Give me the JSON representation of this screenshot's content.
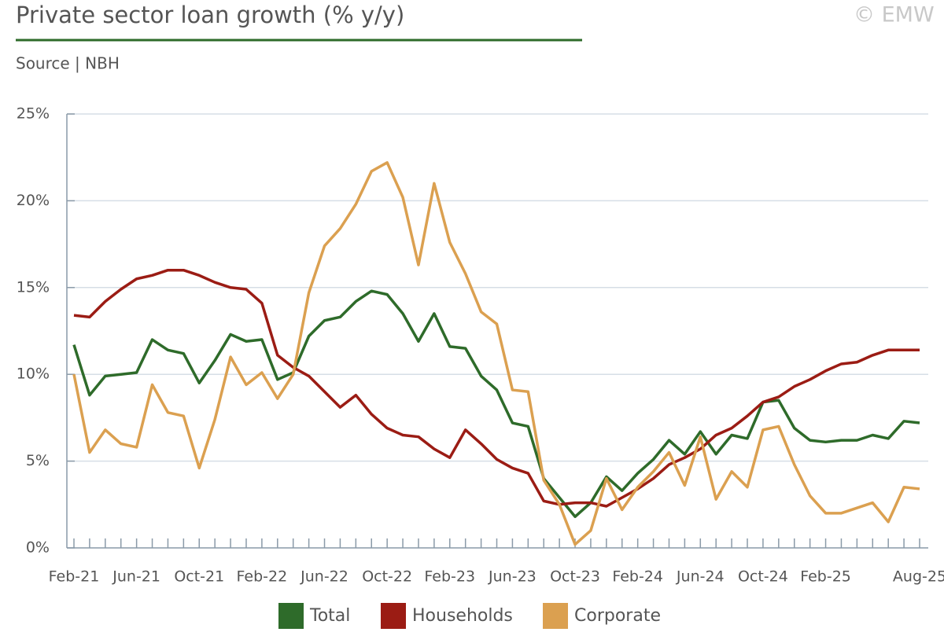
{
  "chart_data": {
    "type": "line",
    "title": "Private sector loan growth (% y/y)",
    "subtitle": "Source | NBH",
    "watermark": "© EMW",
    "categories": [
      "Feb-21",
      null,
      null,
      null,
      "Jun-21",
      null,
      null,
      null,
      "Oct-21",
      null,
      null,
      null,
      "Feb-22",
      null,
      null,
      null,
      "Jun-22",
      null,
      null,
      null,
      "Oct-22",
      null,
      null,
      null,
      "Feb-23",
      null,
      null,
      null,
      "Jun-23",
      null,
      null,
      null,
      "Oct-23",
      null,
      null,
      null,
      "Feb-24",
      null,
      null,
      null,
      "Jun-24",
      null,
      null,
      null,
      "Oct-24",
      null,
      null,
      null,
      "Feb-25",
      null,
      null,
      null,
      null,
      null,
      "Aug-25"
    ],
    "series": [
      {
        "name": "Total",
        "color": "#2e6b2a",
        "values": [
          11.7,
          8.8,
          9.9,
          10.0,
          10.1,
          12.0,
          11.4,
          11.2,
          9.5,
          10.8,
          12.3,
          11.9,
          12.0,
          9.7,
          10.1,
          12.2,
          13.1,
          13.3,
          14.2,
          14.8,
          14.6,
          13.5,
          11.9,
          13.5,
          11.6,
          11.5,
          9.9,
          9.1,
          7.2,
          7.0,
          4.0,
          2.9,
          1.8,
          2.6,
          4.1,
          3.3,
          4.3,
          5.1,
          6.2,
          5.4,
          6.7,
          5.4,
          6.5,
          6.3,
          8.4,
          8.5,
          6.9,
          6.2,
          6.1,
          6.2,
          6.2,
          6.5,
          6.3,
          7.3,
          7.2
        ]
      },
      {
        "name": "Households",
        "color": "#9b1c14",
        "values": [
          13.4,
          13.3,
          14.2,
          14.9,
          15.5,
          15.7,
          16.0,
          16.0,
          15.7,
          15.3,
          15.0,
          14.9,
          14.1,
          11.1,
          10.4,
          9.9,
          9.0,
          8.1,
          8.8,
          7.7,
          6.9,
          6.5,
          6.4,
          5.7,
          5.2,
          6.8,
          6.0,
          5.1,
          4.6,
          4.3,
          2.7,
          2.5,
          2.6,
          2.6,
          2.4,
          2.9,
          3.4,
          4.0,
          4.8,
          5.2,
          5.7,
          6.5,
          6.9,
          7.6,
          8.4,
          8.7,
          9.3,
          9.7,
          10.2,
          10.6,
          10.7,
          11.1,
          11.4,
          11.4,
          11.4
        ]
      },
      {
        "name": "Corporate",
        "color": "#dba050",
        "values": [
          10.0,
          5.5,
          6.8,
          6.0,
          5.8,
          9.4,
          7.8,
          7.6,
          4.6,
          7.4,
          11.0,
          9.4,
          10.1,
          8.6,
          10.0,
          14.7,
          17.4,
          18.4,
          19.8,
          21.7,
          22.2,
          20.2,
          16.3,
          21.0,
          17.6,
          15.8,
          13.6,
          12.9,
          9.1,
          9.0,
          3.9,
          2.5,
          0.2,
          1.0,
          4.0,
          2.2,
          3.5,
          4.4,
          5.5,
          3.6,
          6.4,
          2.8,
          4.4,
          3.5,
          6.8,
          7.0,
          4.8,
          3.0,
          2.0,
          2.0,
          2.3,
          2.6,
          1.5,
          3.5,
          3.4
        ]
      }
    ],
    "ylim": [
      0,
      25
    ],
    "yticks": [
      {
        "value": 0,
        "label": "0%"
      },
      {
        "value": 5,
        "label": "5%"
      },
      {
        "value": 10,
        "label": "10%"
      },
      {
        "value": 15,
        "label": "15%"
      },
      {
        "value": 20,
        "label": "20%"
      },
      {
        "value": 25,
        "label": "25%"
      }
    ],
    "grid": true,
    "legend": "bottom"
  }
}
